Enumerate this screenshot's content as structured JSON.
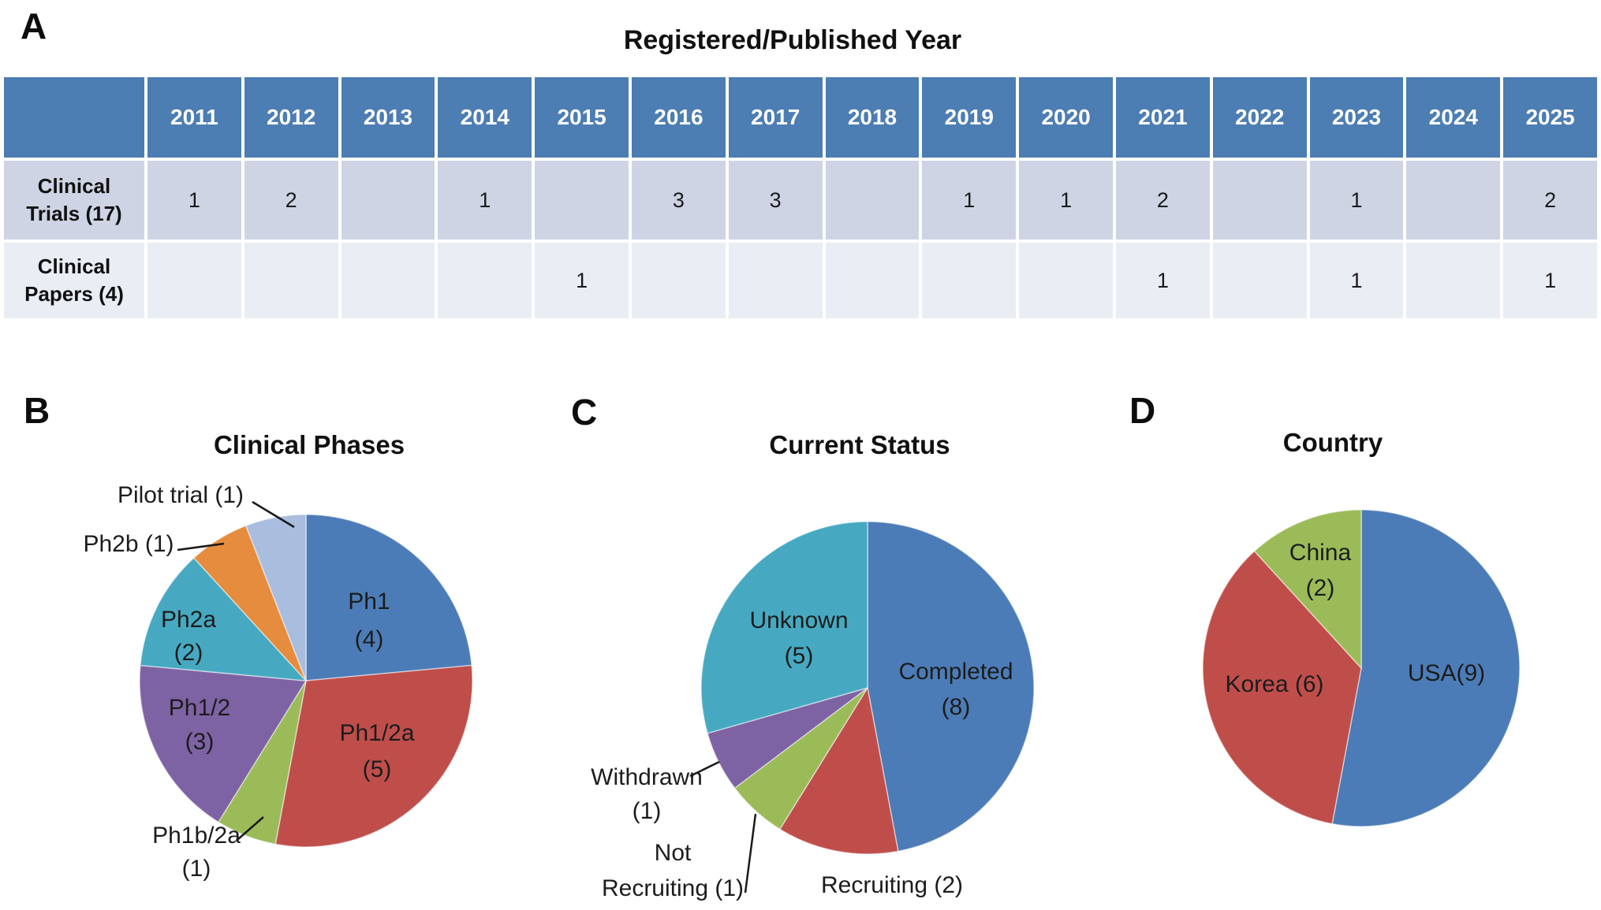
{
  "figure": {
    "panel_a": {
      "letter": "A",
      "title": "Registered/Published Year"
    },
    "panel_b": {
      "letter": "B",
      "title": "Clinical Phases"
    },
    "panel_c": {
      "letter": "C",
      "title": "Current Status"
    },
    "panel_d": {
      "letter": "D",
      "title": "Country"
    }
  },
  "table": {
    "years": [
      "2011",
      "2012",
      "2013",
      "2014",
      "2015",
      "2016",
      "2017",
      "2018",
      "2019",
      "2020",
      "2021",
      "2022",
      "2023",
      "2024",
      "2025"
    ],
    "rows": [
      {
        "label": "Clinical Trials (17)",
        "label_lines": [
          "Clinical",
          "Trials (17)"
        ],
        "values": [
          "1",
          "2",
          "",
          "1",
          "",
          "3",
          "3",
          "",
          "1",
          "1",
          "2",
          "",
          "1",
          "",
          "2"
        ]
      },
      {
        "label": "Clinical Papers (4)",
        "label_lines": [
          "Clinical",
          "Papers (4)"
        ],
        "values": [
          "",
          "",
          "",
          "",
          "1",
          "",
          "",
          "",
          "",
          "",
          "1",
          "",
          "1",
          "",
          "1"
        ]
      }
    ]
  },
  "chart_data": [
    {
      "type": "table",
      "title": "Registered/Published Year",
      "columns": [
        "2011",
        "2012",
        "2013",
        "2014",
        "2015",
        "2016",
        "2017",
        "2018",
        "2019",
        "2020",
        "2021",
        "2022",
        "2023",
        "2024",
        "2025"
      ],
      "rows": [
        {
          "label": "Clinical Trials (17)",
          "values": [
            1,
            2,
            null,
            1,
            null,
            3,
            3,
            null,
            1,
            1,
            2,
            null,
            1,
            null,
            2
          ]
        },
        {
          "label": "Clinical Papers (4)",
          "values": [
            null,
            null,
            null,
            null,
            1,
            null,
            null,
            null,
            null,
            null,
            1,
            null,
            1,
            null,
            1
          ]
        }
      ]
    },
    {
      "type": "pie",
      "panel": "B",
      "title": "Clinical Phases",
      "total": 17,
      "start": "top",
      "direction": "clockwise",
      "slices": [
        {
          "name": "Ph1",
          "value": 4,
          "color": "#4C7CB7",
          "display": [
            "Ph1",
            "(4)"
          ],
          "label_position": "inside"
        },
        {
          "name": "Ph1/2a",
          "value": 5,
          "color": "#BF4E4B",
          "display": [
            "Ph1/2a",
            "(5)"
          ],
          "label_position": "inside"
        },
        {
          "name": "Ph1b/2a",
          "value": 1,
          "color": "#9BBB59",
          "display": [
            "Ph1b/2a",
            "(1)"
          ],
          "label_position": "outside"
        },
        {
          "name": "Ph1/2",
          "value": 3,
          "color": "#7E63A4",
          "display": [
            "Ph1/2",
            "(3)"
          ],
          "label_position": "inside"
        },
        {
          "name": "Ph2a",
          "value": 2,
          "color": "#46A9C1",
          "display": [
            "Ph2a",
            "(2)"
          ],
          "label_position": "inside"
        },
        {
          "name": "Ph2b",
          "value": 1,
          "color": "#E68C3E",
          "display": [
            "Ph2b (1)"
          ],
          "label_position": "outside"
        },
        {
          "name": "Pilot trial",
          "value": 1,
          "color": "#A9BDDF",
          "display": [
            "Pilot trial (1)"
          ],
          "label_position": "outside"
        }
      ]
    },
    {
      "type": "pie",
      "panel": "C",
      "title": "Current Status",
      "total": 17,
      "start": "top",
      "direction": "clockwise",
      "slices": [
        {
          "name": "Completed",
          "value": 8,
          "color": "#4C7CB7",
          "display": [
            "Completed",
            "(8)"
          ],
          "label_position": "inside"
        },
        {
          "name": "Recruiting",
          "value": 2,
          "color": "#BF4E4B",
          "display": [
            "Recruiting (2)"
          ],
          "label_position": "outside"
        },
        {
          "name": "Not Recruiting",
          "value": 1,
          "color": "#9BBB59",
          "display": [
            "Not",
            "Recruiting (1)"
          ],
          "label_position": "outside"
        },
        {
          "name": "Withdrawn",
          "value": 1,
          "color": "#7E63A4",
          "display": [
            "Withdrawn",
            "(1)"
          ],
          "label_position": "outside"
        },
        {
          "name": "Unknown",
          "value": 5,
          "color": "#46A9C1",
          "display": [
            "Unknown",
            "(5)"
          ],
          "label_position": "inside"
        }
      ]
    },
    {
      "type": "pie",
      "panel": "D",
      "title": "Country",
      "total": 17,
      "start": "top",
      "direction": "clockwise",
      "slices": [
        {
          "name": "USA",
          "value": 9,
          "color": "#4C7CB7",
          "display": [
            "USA(9)"
          ],
          "label_position": "inside"
        },
        {
          "name": "Korea",
          "value": 6,
          "color": "#BF4E4B",
          "display": [
            "Korea (6)"
          ],
          "label_position": "inside"
        },
        {
          "name": "China",
          "value": 2,
          "color": "#9BBB59",
          "display": [
            "China",
            "(2)"
          ],
          "label_position": "inside"
        }
      ]
    }
  ],
  "palette": {
    "blue": "#4C7CB7",
    "red": "#BF4E4B",
    "green": "#9BBB59",
    "purple": "#7E63A4",
    "cyan": "#46A9C1",
    "orange": "#E68C3E",
    "light_blue": "#A9BDDF",
    "table_header": "#4C7DB3",
    "table_row1": "#CED4E3",
    "table_row2": "#E9EDF4"
  }
}
